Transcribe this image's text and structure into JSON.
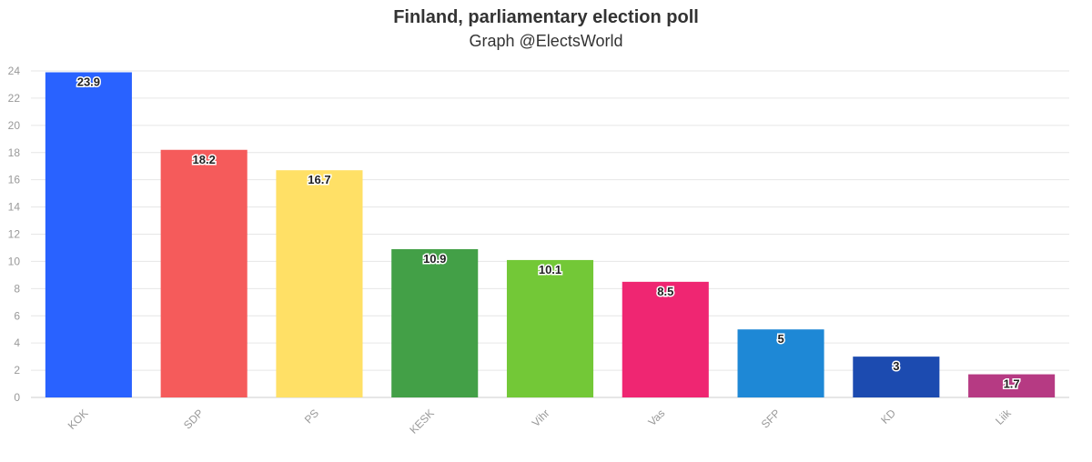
{
  "chart_data": {
    "type": "bar",
    "title": "Finland, parliamentary election poll",
    "subtitle": "Graph @ElectsWorld",
    "xlabel": "",
    "ylabel": "",
    "ylim": [
      0,
      24
    ],
    "yticks": [
      0,
      2,
      4,
      6,
      8,
      10,
      12,
      14,
      16,
      18,
      20,
      22,
      24
    ],
    "grid": true,
    "categories": [
      "KOK",
      "SDP",
      "PS",
      "KESK",
      "Vihr",
      "Vas",
      "SFP",
      "KD",
      "Liik"
    ],
    "values": [
      23.9,
      18.2,
      16.7,
      10.9,
      10.1,
      8.5,
      5,
      3,
      1.7
    ],
    "colors": [
      "#2962ff",
      "#f55b5b",
      "#ffe066",
      "#43a047",
      "#73c837",
      "#ef2672",
      "#1e88d6",
      "#1c4bb0",
      "#b63a83"
    ]
  }
}
